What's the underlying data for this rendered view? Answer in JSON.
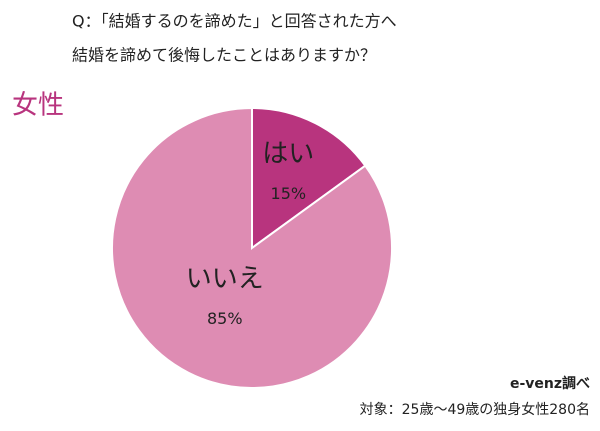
{
  "chart_data": {
    "type": "pie",
    "title": [
      "Q：「結婚するのを諦めた」と回答された方へ",
      "結婚を諦めて後悔したことはありますか？"
    ],
    "subtitle": "女性",
    "categories": [
      "はい",
      "いいえ"
    ],
    "values": [
      15,
      85
    ],
    "value_labels": [
      "15%",
      "85%"
    ],
    "colors": [
      "#b8347e",
      "#de8cb3"
    ],
    "source": "e-venz調べ",
    "note": "対象：25歳〜49歳の独身女性280名"
  }
}
